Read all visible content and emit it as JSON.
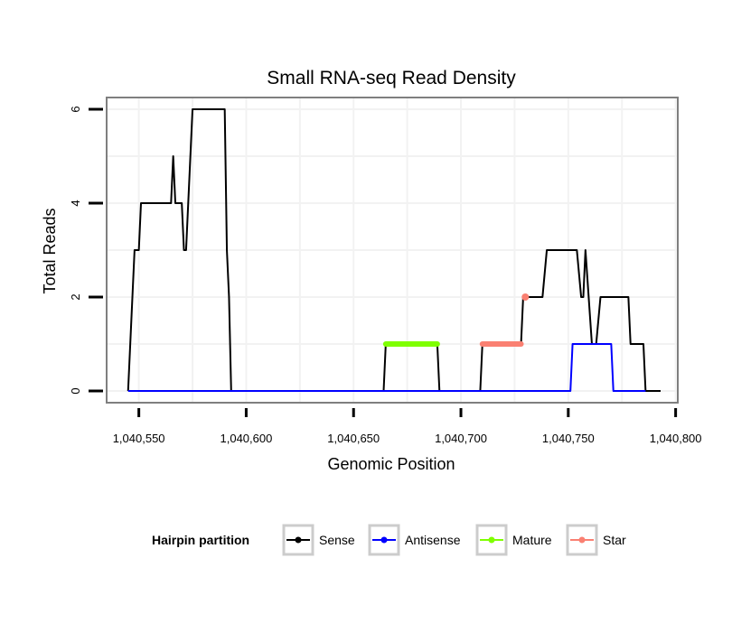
{
  "chart_data": {
    "type": "line",
    "title": "Small RNA-seq Read Density",
    "xlabel": "Genomic Position",
    "ylabel": "Total Reads",
    "xlim": [
      1040535,
      1040801
    ],
    "ylim": [
      -0.25,
      6.25
    ],
    "x_ticks": [
      1040550,
      1040600,
      1040650,
      1040700,
      1040750,
      1040800
    ],
    "x_tick_labels": [
      "1,040,550",
      "1,040,600",
      "1,040,650",
      "1,040,700",
      "1,040,750",
      "1,040,800"
    ],
    "y_ticks": [
      0,
      2,
      4,
      6
    ],
    "y_tick_labels": [
      "0",
      "2",
      "4",
      "6"
    ],
    "grid": true,
    "legend": {
      "title": "Hairpin partition",
      "position": "bottom",
      "entries": [
        {
          "name": "Sense",
          "color": "#000000"
        },
        {
          "name": "Antisense",
          "color": "#0000ff"
        },
        {
          "name": "Mature",
          "color": "#7fff00"
        },
        {
          "name": "Star",
          "color": "#fa8072"
        }
      ]
    },
    "series": [
      {
        "name": "Sense",
        "color": "#000000",
        "points": [
          [
            1040545,
            0
          ],
          [
            1040548,
            3
          ],
          [
            1040550,
            3
          ],
          [
            1040551,
            4
          ],
          [
            1040565,
            4
          ],
          [
            1040566,
            5
          ],
          [
            1040567,
            4
          ],
          [
            1040570,
            4
          ],
          [
            1040571,
            3
          ],
          [
            1040572,
            3
          ],
          [
            1040575,
            6
          ],
          [
            1040590,
            6
          ],
          [
            1040591,
            3
          ],
          [
            1040592,
            2
          ],
          [
            1040593,
            0
          ],
          [
            1040664,
            0
          ],
          [
            1040665,
            1
          ],
          [
            1040689,
            1
          ],
          [
            1040690,
            0
          ],
          [
            1040709,
            0
          ],
          [
            1040710,
            1
          ],
          [
            1040728,
            1
          ],
          [
            1040729,
            2
          ],
          [
            1040738,
            2
          ],
          [
            1040740,
            3
          ],
          [
            1040754,
            3
          ],
          [
            1040756,
            2
          ],
          [
            1040757,
            2
          ],
          [
            1040758,
            3
          ],
          [
            1040761,
            1
          ],
          [
            1040763,
            1
          ],
          [
            1040765,
            2
          ],
          [
            1040778,
            2
          ],
          [
            1040779,
            1
          ],
          [
            1040785,
            1
          ],
          [
            1040786,
            0
          ],
          [
            1040793,
            0
          ]
        ]
      },
      {
        "name": "Antisense",
        "color": "#0000ff",
        "points": [
          [
            1040545,
            0
          ],
          [
            1040751,
            0
          ],
          [
            1040752,
            1
          ],
          [
            1040770,
            1
          ],
          [
            1040771,
            0
          ],
          [
            1040786,
            0
          ]
        ]
      },
      {
        "name": "Mature",
        "color": "#7fff00",
        "points": [
          [
            1040665,
            1
          ],
          [
            1040689,
            1
          ]
        ]
      },
      {
        "name": "Star",
        "color": "#fa8072",
        "points": [
          [
            1040710,
            1
          ],
          [
            1040728,
            1
          ]
        ],
        "extra_points": [
          [
            1040730,
            2
          ]
        ]
      }
    ]
  }
}
